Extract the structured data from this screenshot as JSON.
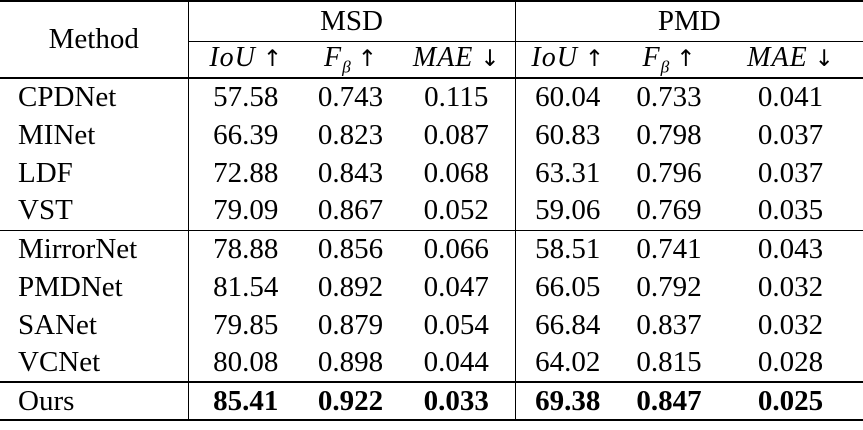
{
  "table": {
    "method_header": "Method",
    "groups": [
      {
        "label": "MSD",
        "metrics": [
          {
            "text": "IoU",
            "sub": "",
            "arrow": "↑"
          },
          {
            "text": "F",
            "sub": "β",
            "arrow": "↑"
          },
          {
            "text": "MAE",
            "sub": "",
            "arrow": "↓"
          }
        ]
      },
      {
        "label": "PMD",
        "metrics": [
          {
            "text": "IoU",
            "sub": "",
            "arrow": "↑"
          },
          {
            "text": "F",
            "sub": "β",
            "arrow": "↑"
          },
          {
            "text": "MAE",
            "sub": "",
            "arrow": "↓"
          }
        ]
      }
    ],
    "rows": [
      {
        "method": "CPDNet",
        "msd": [
          "57.58",
          "0.743",
          "0.115"
        ],
        "pmd": [
          "60.04",
          "0.733",
          "0.041"
        ],
        "bold": false,
        "rule_below": "none"
      },
      {
        "method": "MINet",
        "msd": [
          "66.39",
          "0.823",
          "0.087"
        ],
        "pmd": [
          "60.83",
          "0.798",
          "0.037"
        ],
        "bold": false,
        "rule_below": "none"
      },
      {
        "method": "LDF",
        "msd": [
          "72.88",
          "0.843",
          "0.068"
        ],
        "pmd": [
          "63.31",
          "0.796",
          "0.037"
        ],
        "bold": false,
        "rule_below": "none"
      },
      {
        "method": "VST",
        "msd": [
          "79.09",
          "0.867",
          "0.052"
        ],
        "pmd": [
          "59.06",
          "0.769",
          "0.035"
        ],
        "bold": false,
        "rule_below": "thin"
      },
      {
        "method": "MirrorNet",
        "msd": [
          "78.88",
          "0.856",
          "0.066"
        ],
        "pmd": [
          "58.51",
          "0.741",
          "0.043"
        ],
        "bold": false,
        "rule_below": "none"
      },
      {
        "method": "PMDNet",
        "msd": [
          "81.54",
          "0.892",
          "0.047"
        ],
        "pmd": [
          "66.05",
          "0.792",
          "0.032"
        ],
        "bold": false,
        "rule_below": "none"
      },
      {
        "method": "SANet",
        "msd": [
          "79.85",
          "0.879",
          "0.054"
        ],
        "pmd": [
          "66.84",
          "0.837",
          "0.032"
        ],
        "bold": false,
        "rule_below": "none"
      },
      {
        "method": "VCNet",
        "msd": [
          "80.08",
          "0.898",
          "0.044"
        ],
        "pmd": [
          "64.02",
          "0.815",
          "0.028"
        ],
        "bold": false,
        "rule_below": "thick"
      },
      {
        "method": "Ours",
        "msd": [
          "85.41",
          "0.922",
          "0.033"
        ],
        "pmd": [
          "69.38",
          "0.847",
          "0.025"
        ],
        "bold": true,
        "rule_below": "thick"
      }
    ],
    "colors": {
      "text": "#000000",
      "background": "#ffffff",
      "rule": "#000000"
    }
  }
}
